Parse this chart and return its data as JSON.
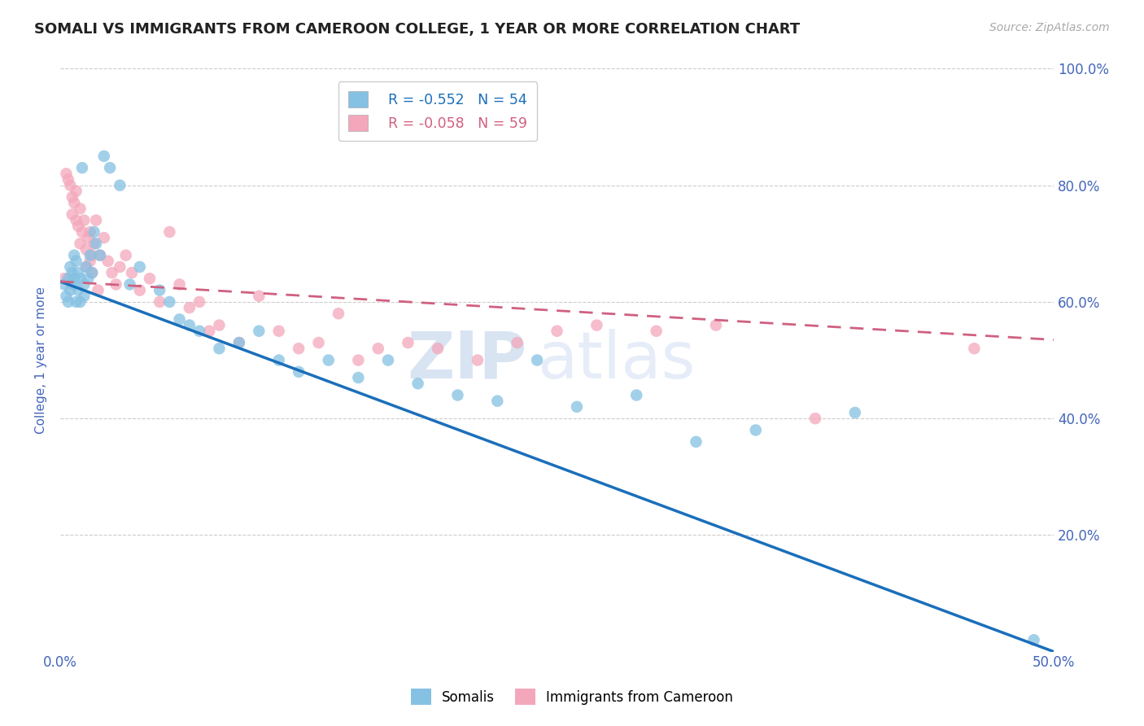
{
  "title": "SOMALI VS IMMIGRANTS FROM CAMEROON COLLEGE, 1 YEAR OR MORE CORRELATION CHART",
  "source": "Source: ZipAtlas.com",
  "ylabel": "College, 1 year or more",
  "x_min": 0.0,
  "x_max": 0.5,
  "y_min": 0.0,
  "y_max": 1.0,
  "x_ticks": [
    0.0,
    0.1,
    0.2,
    0.3,
    0.4,
    0.5
  ],
  "x_tick_labels": [
    "0.0%",
    "",
    "",
    "",
    "",
    "50.0%"
  ],
  "y_ticks": [
    0.0,
    0.2,
    0.4,
    0.6,
    0.8,
    1.0
  ],
  "y_tick_labels_right": [
    "",
    "20.0%",
    "40.0%",
    "60.0%",
    "80.0%",
    "100.0%"
  ],
  "somali_color": "#85c1e2",
  "cameroon_color": "#f4a7bb",
  "trendline_somali_color": "#1a6fba",
  "trendline_cameroon_color": "#d06080",
  "watermark_zip": "ZIP",
  "watermark_atlas": "atlas",
  "legend_r_somali": "R = -0.552",
  "legend_n_somali": "N = 54",
  "legend_r_cameroon": "R = -0.058",
  "legend_n_cameroon": "N = 59",
  "somali_x": [
    0.002,
    0.003,
    0.004,
    0.004,
    0.005,
    0.005,
    0.006,
    0.006,
    0.007,
    0.007,
    0.008,
    0.008,
    0.009,
    0.009,
    0.01,
    0.01,
    0.011,
    0.012,
    0.012,
    0.013,
    0.014,
    0.015,
    0.016,
    0.017,
    0.018,
    0.02,
    0.022,
    0.025,
    0.03,
    0.035,
    0.04,
    0.05,
    0.055,
    0.06,
    0.065,
    0.07,
    0.08,
    0.09,
    0.1,
    0.11,
    0.12,
    0.135,
    0.15,
    0.165,
    0.18,
    0.2,
    0.22,
    0.24,
    0.26,
    0.29,
    0.32,
    0.35,
    0.4,
    0.49
  ],
  "somali_y": [
    0.63,
    0.61,
    0.64,
    0.6,
    0.66,
    0.62,
    0.65,
    0.63,
    0.68,
    0.64,
    0.67,
    0.6,
    0.65,
    0.62,
    0.64,
    0.6,
    0.83,
    0.63,
    0.61,
    0.66,
    0.64,
    0.68,
    0.65,
    0.72,
    0.7,
    0.68,
    0.85,
    0.83,
    0.8,
    0.63,
    0.66,
    0.62,
    0.6,
    0.57,
    0.56,
    0.55,
    0.52,
    0.53,
    0.55,
    0.5,
    0.48,
    0.5,
    0.47,
    0.5,
    0.46,
    0.44,
    0.43,
    0.5,
    0.42,
    0.44,
    0.36,
    0.38,
    0.41,
    0.02
  ],
  "cameroon_x": [
    0.002,
    0.003,
    0.004,
    0.005,
    0.006,
    0.006,
    0.007,
    0.008,
    0.008,
    0.009,
    0.01,
    0.01,
    0.011,
    0.012,
    0.013,
    0.013,
    0.014,
    0.015,
    0.015,
    0.016,
    0.016,
    0.017,
    0.018,
    0.019,
    0.02,
    0.022,
    0.024,
    0.026,
    0.028,
    0.03,
    0.033,
    0.036,
    0.04,
    0.045,
    0.05,
    0.055,
    0.06,
    0.065,
    0.07,
    0.075,
    0.08,
    0.09,
    0.1,
    0.11,
    0.12,
    0.13,
    0.14,
    0.15,
    0.16,
    0.175,
    0.19,
    0.21,
    0.23,
    0.25,
    0.27,
    0.3,
    0.33,
    0.38,
    0.46
  ],
  "cameroon_y": [
    0.64,
    0.82,
    0.81,
    0.8,
    0.78,
    0.75,
    0.77,
    0.74,
    0.79,
    0.73,
    0.76,
    0.7,
    0.72,
    0.74,
    0.69,
    0.66,
    0.71,
    0.67,
    0.72,
    0.65,
    0.68,
    0.7,
    0.74,
    0.62,
    0.68,
    0.71,
    0.67,
    0.65,
    0.63,
    0.66,
    0.68,
    0.65,
    0.62,
    0.64,
    0.6,
    0.72,
    0.63,
    0.59,
    0.6,
    0.55,
    0.56,
    0.53,
    0.61,
    0.55,
    0.52,
    0.53,
    0.58,
    0.5,
    0.52,
    0.53,
    0.52,
    0.5,
    0.53,
    0.55,
    0.56,
    0.55,
    0.56,
    0.4,
    0.52
  ],
  "trendline_somali_x0": 0.0,
  "trendline_somali_y0": 0.635,
  "trendline_somali_x1": 0.5,
  "trendline_somali_y1": 0.0,
  "trendline_cameroon_x0": 0.0,
  "trendline_cameroon_y0": 0.635,
  "trendline_cameroon_x1": 0.5,
  "trendline_cameroon_y1": 0.535,
  "background_color": "#ffffff",
  "grid_color": "#cccccc",
  "title_color": "#222222",
  "axis_label_color": "#4466bb",
  "tick_label_color": "#4466bb"
}
